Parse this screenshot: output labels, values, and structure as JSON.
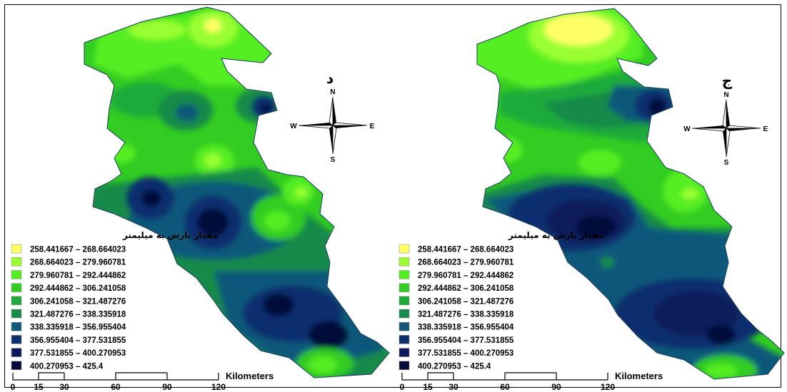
{
  "legend": {
    "title": "مقدار بارش به میلیمتر",
    "classes": [
      {
        "label": "258.441667 – 268.664023",
        "color": "#ffff66"
      },
      {
        "label": "268.664023 – 279.960781",
        "color": "#99ff33"
      },
      {
        "label": "279.960781 – 292.444862",
        "color": "#55ee22"
      },
      {
        "label": "292.444862 – 306.241058",
        "color": "#33cc22"
      },
      {
        "label": "306.241058 – 321.487276",
        "color": "#1faa3a"
      },
      {
        "label": "321.487276 – 338.335918",
        "color": "#188a4a"
      },
      {
        "label": "338.335918 – 356.955404",
        "color": "#11587a"
      },
      {
        "label": "356.955404 – 377.531855",
        "color": "#0c2f6e"
      },
      {
        "label": "377.531855 – 400.270953",
        "color": "#0a1a5a"
      },
      {
        "label": "400.270953 – 425.4",
        "color": "#060d3a"
      }
    ]
  },
  "compass": {
    "n": "N",
    "s": "S",
    "e": "E",
    "w": "W"
  },
  "scalebar": {
    "unit": "Kilometers",
    "ticks": [
      "0",
      "15",
      "30",
      "60",
      "90",
      "120"
    ]
  },
  "panels": [
    {
      "id": "left",
      "letter": "د"
    },
    {
      "id": "right",
      "letter": "ج"
    }
  ]
}
